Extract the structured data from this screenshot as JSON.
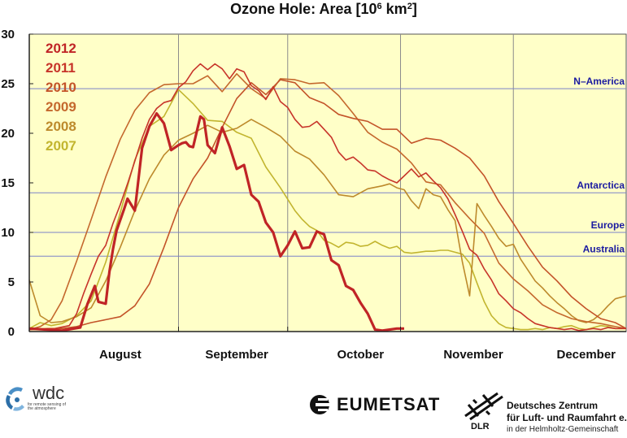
{
  "chart_data": {
    "type": "line",
    "title_main": "Ozone Hole: Area [10",
    "title_exp1": "6",
    "title_mid": " km",
    "title_exp2": "2",
    "title_end": "]",
    "y_range": [
      0,
      30
    ],
    "y_ticks": [
      "0",
      "5",
      "10",
      "15",
      "20",
      "25",
      "30"
    ],
    "x_range_day_of_year": [
      201,
      365
    ],
    "x_month_labels": [
      {
        "label": "August",
        "day": 226
      },
      {
        "label": "September",
        "day": 258
      },
      {
        "label": "October",
        "day": 292
      },
      {
        "label": "November",
        "day": 323
      },
      {
        "label": "December",
        "day": 354
      }
    ],
    "x_gridline_days": [
      242,
      272,
      303,
      334
    ],
    "grid": true,
    "legend_placement": "top-left",
    "reference_lines": [
      {
        "label": "N–America",
        "value": 24.5
      },
      {
        "label": "Antarctica",
        "value": 14
      },
      {
        "label": "Europe",
        "value": 10
      },
      {
        "label": "Australia",
        "value": 7.6
      }
    ],
    "series": [
      {
        "name": "2012",
        "color": "#c02426",
        "x": [
          201,
          210,
          215,
          217,
          219,
          220,
          222,
          223,
          224,
          225,
          227,
          228,
          230,
          232,
          234,
          236,
          238,
          240,
          242,
          243,
          244,
          245,
          246,
          248,
          249,
          250,
          252,
          254,
          256,
          258,
          260,
          262,
          264,
          266,
          268,
          270,
          272,
          274,
          276,
          278,
          280,
          282,
          284,
          286,
          288,
          290,
          292,
          294,
          296,
          298,
          300,
          302,
          304
        ],
        "y": [
          0.3,
          0.1,
          0.4,
          2.8,
          4.6,
          3.0,
          2.8,
          6.0,
          8.3,
          10.2,
          12.3,
          13.4,
          12.2,
          18.5,
          20.7,
          22.0,
          21.0,
          18.3,
          18.8,
          19.0,
          19.1,
          18.7,
          18.6,
          21.7,
          21.4,
          18.8,
          18.0,
          20.6,
          18.7,
          16.4,
          16.8,
          13.8,
          13.1,
          11.0,
          10.0,
          7.6,
          8.7,
          10.1,
          8.4,
          8.5,
          10.1,
          9.8,
          7.2,
          6.7,
          4.6,
          4.2,
          2.9,
          1.8,
          0.2,
          0.1,
          0.2,
          0.3,
          0.3
        ]
      },
      {
        "name": "2011",
        "color": "#c7342a",
        "x": [
          201,
          208,
          212,
          214,
          216,
          218,
          220,
          222,
          224,
          226,
          228,
          230,
          232,
          234,
          236,
          238,
          240,
          242,
          244,
          246,
          248,
          250,
          252,
          254,
          256,
          258,
          260,
          262,
          264,
          266,
          268,
          270,
          272,
          274,
          276,
          278,
          280,
          282,
          284,
          286,
          288,
          290,
          292,
          294,
          296,
          298,
          300,
          302,
          304,
          306,
          308,
          310,
          312,
          314,
          316,
          318,
          320,
          322,
          324,
          326,
          328,
          330,
          332,
          334,
          336,
          338,
          340,
          342,
          344,
          346,
          348,
          350,
          352,
          354,
          356,
          358,
          360,
          362,
          365
        ],
        "y": [
          0.2,
          0.3,
          0.6,
          1.8,
          3.9,
          5.8,
          7.6,
          8.7,
          10.9,
          12.8,
          14.9,
          17.2,
          19.5,
          21.4,
          22.5,
          23.1,
          23.3,
          24.6,
          25.2,
          26.3,
          27.0,
          26.4,
          27.0,
          26.5,
          25.5,
          26.5,
          26.2,
          24.8,
          24.3,
          23.4,
          24.7,
          23.2,
          22.6,
          21.4,
          20.6,
          20.7,
          21.2,
          20.4,
          19.6,
          18.1,
          17.3,
          17.6,
          17.0,
          16.3,
          16.2,
          15.7,
          15.3,
          15.0,
          15.7,
          16.4,
          15.6,
          16.0,
          15.2,
          14.5,
          13.4,
          11.8,
          10.1,
          8.3,
          7.7,
          6.3,
          5.2,
          3.8,
          3.1,
          2.3,
          1.9,
          1.3,
          0.8,
          0.6,
          0.4,
          0.3,
          0.2,
          0.3,
          0.1,
          0.2,
          0.3,
          0.2,
          0.4,
          0.3,
          0.3
        ]
      },
      {
        "name": "2010",
        "color": "#c35329",
        "x": [
          201,
          206,
          210,
          214,
          218,
          222,
          226,
          230,
          234,
          238,
          242,
          246,
          250,
          254,
          258,
          262,
          266,
          270,
          274,
          278,
          282,
          286,
          290,
          294,
          298,
          302,
          306,
          310,
          314,
          318,
          322,
          326,
          330,
          334,
          338,
          342,
          346,
          350,
          354,
          358,
          362,
          365
        ],
        "y": [
          0.2,
          0.3,
          0.3,
          0.5,
          0.9,
          1.2,
          1.5,
          2.6,
          4.8,
          8.5,
          12.5,
          15.4,
          17.5,
          20.6,
          23.5,
          25.1,
          23.9,
          25.4,
          25.1,
          23.6,
          23.0,
          21.9,
          21.5,
          21.2,
          20.4,
          20.4,
          19.0,
          19.5,
          19.3,
          18.5,
          17.5,
          15.7,
          13.1,
          10.9,
          8.6,
          6.5,
          5.1,
          3.5,
          2.3,
          1.3,
          0.9,
          0.3
        ]
      },
      {
        "name": "2009",
        "color": "#c4682d",
        "x": [
          201,
          204,
          207,
          210,
          214,
          218,
          222,
          226,
          230,
          234,
          238,
          242,
          246,
          250,
          254,
          258,
          262,
          266,
          270,
          274,
          278,
          282,
          286,
          290,
          294,
          298,
          302,
          306,
          310,
          314,
          318,
          322,
          326,
          330,
          334,
          338,
          342,
          346,
          350,
          354,
          358,
          362,
          365
        ],
        "y": [
          0.2,
          0.5,
          1.2,
          3.1,
          7.1,
          11.3,
          15.6,
          19.4,
          22.3,
          24.1,
          24.9,
          25.0,
          25.0,
          25.8,
          24.2,
          26.0,
          24.5,
          23.5,
          25.5,
          25.4,
          25.0,
          25.1,
          23.8,
          22.0,
          20.1,
          19.1,
          18.4,
          17.0,
          15.1,
          14.8,
          13.0,
          11.4,
          9.9,
          6.9,
          5.3,
          4.1,
          2.7,
          1.9,
          1.3,
          1.0,
          0.8,
          0.5,
          0.3
        ]
      },
      {
        "name": "2008",
        "color": "#bd8a2c",
        "x": [
          201,
          204,
          207,
          210,
          214,
          218,
          222,
          226,
          230,
          234,
          238,
          242,
          246,
          250,
          254,
          258,
          262,
          266,
          270,
          274,
          278,
          282,
          286,
          290,
          294,
          298,
          300,
          302,
          304,
          306,
          308,
          310,
          312,
          314,
          316,
          318,
          320,
          322,
          324,
          326,
          328,
          330,
          332,
          334,
          336,
          338,
          340,
          342,
          344,
          346,
          348,
          350,
          352,
          354,
          356,
          358,
          360,
          362,
          365
        ],
        "y": [
          5.2,
          1.6,
          0.9,
          1.0,
          1.5,
          2.4,
          5.1,
          8.5,
          12.2,
          15.4,
          17.8,
          19.3,
          20.0,
          20.8,
          20.1,
          20.5,
          21.4,
          20.6,
          19.7,
          18.2,
          17.4,
          15.8,
          13.8,
          13.6,
          14.4,
          14.7,
          14.9,
          14.5,
          14.3,
          13.2,
          12.4,
          14.4,
          13.8,
          13.6,
          12.3,
          11.2,
          7.0,
          3.6,
          12.9,
          11.7,
          10.6,
          9.4,
          8.6,
          8.8,
          7.3,
          6.2,
          5.1,
          4.4,
          3.6,
          2.9,
          2.3,
          1.6,
          1.1,
          0.9,
          1.2,
          1.8,
          2.6,
          3.3,
          3.6
        ]
      },
      {
        "name": "2007",
        "color": "#c2b52f",
        "x": [
          201,
          204,
          207,
          210,
          214,
          218,
          222,
          226,
          230,
          234,
          238,
          242,
          246,
          250,
          254,
          258,
          262,
          266,
          270,
          274,
          276,
          278,
          280,
          282,
          284,
          286,
          288,
          290,
          292,
          294,
          296,
          298,
          300,
          302,
          304,
          306,
          308,
          310,
          312,
          314,
          316,
          318,
          320,
          322,
          324,
          326,
          328,
          330,
          332,
          334,
          336,
          338,
          340,
          342,
          344,
          346,
          348,
          350,
          352,
          354,
          356,
          358,
          360,
          362,
          365
        ],
        "y": [
          0.3,
          0.9,
          0.6,
          0.8,
          1.6,
          3.1,
          7.0,
          12.0,
          17.3,
          20.7,
          21.7,
          24.4,
          23.0,
          21.3,
          21.2,
          20.1,
          19.5,
          16.6,
          14.5,
          12.2,
          11.3,
          10.6,
          10.2,
          9.2,
          8.9,
          8.5,
          9.0,
          8.9,
          8.6,
          8.7,
          9.1,
          8.7,
          8.4,
          8.6,
          8.0,
          7.9,
          8.0,
          8.1,
          8.1,
          8.2,
          8.2,
          8.0,
          7.8,
          6.9,
          4.9,
          3.0,
          1.6,
          0.8,
          0.4,
          0.3,
          0.2,
          0.2,
          0.3,
          0.2,
          0.4,
          0.3,
          0.5,
          0.6,
          0.3,
          0.2,
          0.4,
          0.6,
          0.5,
          0.3,
          0.3
        ]
      }
    ]
  },
  "logos": {
    "wdc_name": "wdc",
    "wdc_subtitle": "for remote sensing of the atmosphere",
    "eumetsat_name": "EUMETSAT",
    "dlr_mark": "DLR",
    "dlr_line1": "Deutsches Zentrum",
    "dlr_line2": "für Luft- und Raumfahrt e.V.",
    "dlr_line3": "in der Helmholtz-Gemeinschaft"
  }
}
